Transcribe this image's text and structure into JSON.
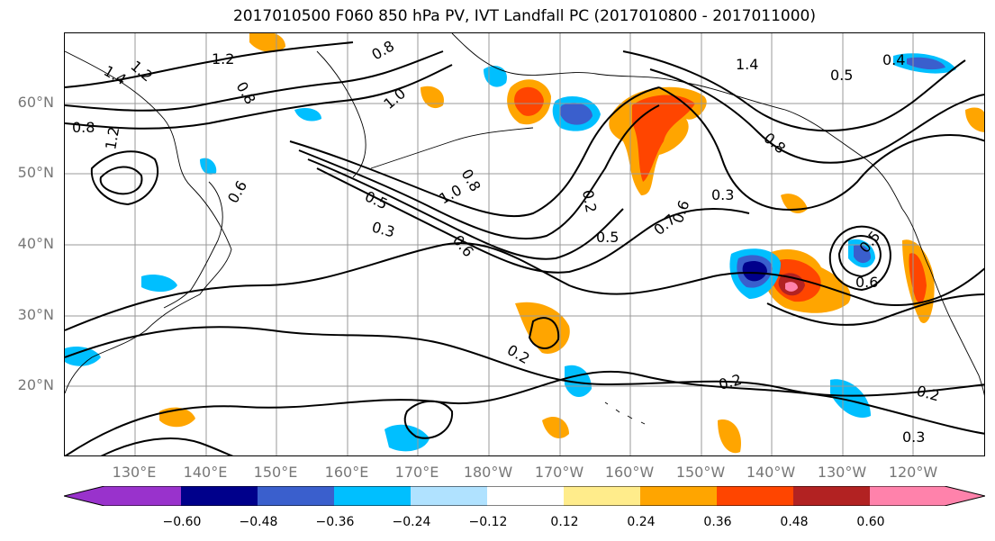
{
  "title": "2017010500 F060 850 hPa PV, IVT Landfall PC (2017010800 - 2017011000)",
  "map": {
    "lat_labels": [
      "60°N",
      "50°N",
      "40°N",
      "30°N",
      "20°N"
    ],
    "lon_labels": [
      "130°E",
      "140°E",
      "150°E",
      "160°E",
      "170°E",
      "180°W",
      "170°W",
      "160°W",
      "150°W",
      "140°W",
      "130°W",
      "120°W"
    ],
    "contour_labels": [
      "1.2",
      "1.4",
      "1.2",
      "0.8",
      "0.8",
      "1.2",
      "0.8",
      "1.0",
      "0.5",
      "0.3",
      "1.0",
      "0.8",
      "0.6",
      "0.6",
      "0.2",
      "0.5",
      "0.7",
      "0.6",
      "0.3",
      "0.5",
      "0.6",
      "0.2",
      "0.2",
      "0.2",
      "0.3",
      "1.4",
      "0.4",
      "0.5",
      "0.8"
    ],
    "grid": true,
    "projection": "PlateCarree"
  },
  "colorbar": {
    "ticks": [
      "−0.60",
      "−0.48",
      "−0.36",
      "−0.24",
      "−0.12",
      "0.12",
      "0.24",
      "0.36",
      "0.48",
      "0.60"
    ],
    "colors": [
      "#9932cc",
      "#00008b",
      "#3a5fcd",
      "#00bfff",
      "#b0e2ff",
      "#ffffff",
      "#ffec8b",
      "#ffa500",
      "#ff4500",
      "#b22222",
      "#ff82ab"
    ]
  }
}
